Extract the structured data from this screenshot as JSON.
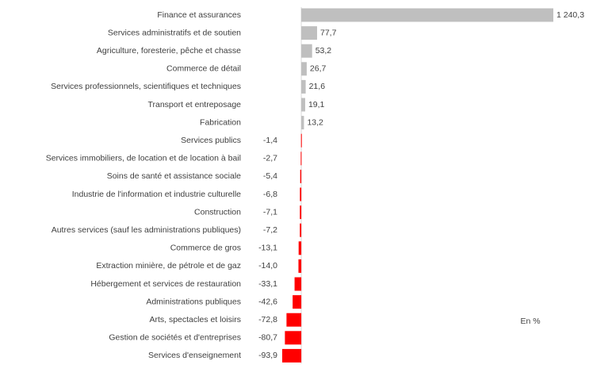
{
  "chart_data": {
    "type": "bar",
    "orientation": "horizontal",
    "categories": [
      "Finance et assurances",
      "Services administratifs et de soutien",
      "Agriculture, foresterie, pêche et chasse",
      "Commerce de détail",
      "Services professionnels, scientifiques et techniques",
      "Transport et entreposage",
      "Fabrication",
      "Services publics",
      "Services immobiliers, de location et de location à bail",
      "Soins de santé et assistance sociale",
      "Industrie de l'information et industrie culturelle",
      "Construction",
      "Autres services (sauf les administrations publiques)",
      "Commerce de gros",
      "Extraction minière, de pétrole et de gaz",
      "Hébergement et services de restauration",
      "Administrations publiques",
      "Arts, spectacles et loisirs",
      "Gestion de sociétés et d'entreprises",
      "Services d'enseignement"
    ],
    "values": [
      1240.3,
      77.7,
      53.2,
      26.7,
      21.6,
      19.1,
      13.2,
      -1.4,
      -2.7,
      -5.4,
      -6.8,
      -7.1,
      -7.2,
      -13.1,
      -14.0,
      -33.1,
      -42.6,
      -72.8,
      -80.7,
      -93.9
    ],
    "value_labels": [
      "1 240,3",
      "77,7",
      "53,2",
      "26,7",
      "21,6",
      "19,1",
      "13,2",
      "-1,4",
      "-2,7",
      "-5,4",
      "-6,8",
      "-7,1",
      "-7,2",
      "-13,1",
      "-14,0",
      "-33,1",
      "-42,6",
      "-72,8",
      "-80,7",
      "-93,9"
    ],
    "positive_color": "#bfbfbf",
    "negative_color": "#ff0000",
    "annotation": "En %"
  }
}
